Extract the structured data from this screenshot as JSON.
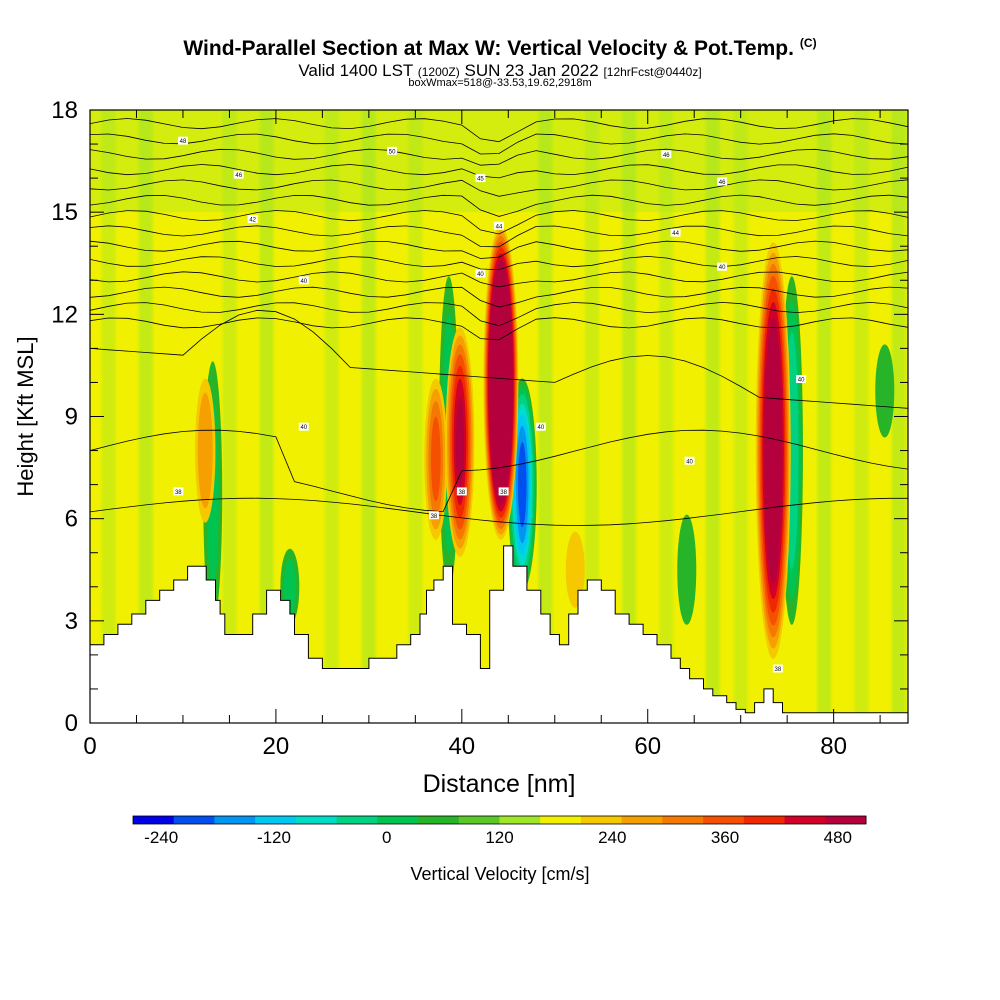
{
  "titles": {
    "line1": "Wind-Parallel Section at Max W: Vertical Velocity & Pot.Temp.",
    "copyright_mark": "(C)",
    "line2_main": "Valid 1400 LST",
    "line2_zulu": "(1200Z)",
    "line2_date": "SUN 23 Jan 2022",
    "line2_fcst": "[12hrFcst@0440z]",
    "line3": "boxWmax=518@-33.53,19.62,2918m"
  },
  "chart_data": {
    "type": "heatmap",
    "title": "Wind-Parallel Section at Max W: Vertical Velocity & Pot.Temp.",
    "xlabel": "Distance [nm]",
    "ylabel": "Height [Kft MSL]",
    "xlim": [
      0,
      88
    ],
    "ylim": [
      0,
      18
    ],
    "xticks": [
      0,
      20,
      40,
      60,
      80
    ],
    "yticks": [
      0,
      3,
      6,
      9,
      12,
      15,
      18
    ],
    "background_value": 40,
    "colorbar": {
      "label": "Vertical Velocity [cm/s]",
      "tick_labels": [
        "-240",
        "-120",
        "0",
        "120",
        "240",
        "360",
        "480"
      ],
      "tick_values": [
        -240,
        -120,
        0,
        120,
        240,
        360,
        480
      ],
      "range": [
        -270,
        510
      ],
      "step": 30,
      "colors": [
        "#0000e6",
        "#0050f0",
        "#0096f0",
        "#00c8f0",
        "#00dcc8",
        "#00d282",
        "#00c350",
        "#28b428",
        "#5ac828",
        "#a0e628",
        "#f0f000",
        "#f5c800",
        "#f5a000",
        "#f57800",
        "#f55000",
        "#f02800",
        "#d20028",
        "#b4003c"
      ]
    },
    "features": [
      {
        "name": "updraft",
        "x": 44.2,
        "y_bottom": 5.5,
        "y_top": 14.5,
        "peak_cm_s": 480
      },
      {
        "name": "updraft",
        "x": 73.5,
        "y_bottom": 2,
        "y_top": 14,
        "peak_cm_s": 330
      },
      {
        "name": "updraft",
        "x": 39.8,
        "y_bottom": 5,
        "y_top": 11.5,
        "peak_cm_s": 240
      },
      {
        "name": "updraft",
        "x": 37.2,
        "y_bottom": 5.5,
        "y_top": 10,
        "peak_cm_s": 150
      },
      {
        "name": "updraft",
        "x": 12.4,
        "y_bottom": 6,
        "y_top": 10,
        "peak_cm_s": 110
      },
      {
        "name": "updraft",
        "x": 52.2,
        "y_bottom": 3.5,
        "y_top": 5.5,
        "peak_cm_s": 60
      },
      {
        "name": "downdraft",
        "x": 46.5,
        "y_bottom": 4,
        "y_top": 10,
        "peak_cm_s": -240
      },
      {
        "name": "downdraft",
        "x": 38.6,
        "y_bottom": 4,
        "y_top": 13,
        "peak_cm_s": -100
      },
      {
        "name": "downdraft",
        "x": 75.5,
        "y_bottom": 3,
        "y_top": 13,
        "peak_cm_s": -140
      },
      {
        "name": "downdraft",
        "x": 13.2,
        "y_bottom": 3,
        "y_top": 10.5,
        "peak_cm_s": -90
      },
      {
        "name": "downdraft",
        "x": 21.5,
        "y_bottom": 3,
        "y_top": 5,
        "peak_cm_s": -90
      },
      {
        "name": "downdraft",
        "x": 64.2,
        "y_bottom": 3,
        "y_top": 6,
        "peak_cm_s": -80
      },
      {
        "name": "downdraft",
        "x": 85.5,
        "y_bottom": 8.5,
        "y_top": 11,
        "peak_cm_s": -60
      }
    ],
    "terrain": {
      "x": [
        0,
        1.5,
        3,
        4.5,
        6,
        7.5,
        9,
        10.5,
        11.5,
        12.5,
        13.5,
        14,
        14.5,
        16,
        17.5,
        19,
        20.5,
        21.5,
        22,
        23.5,
        25,
        27,
        28.5,
        30,
        31.5,
        33,
        34.5,
        35.5,
        36.2,
        37,
        38,
        39,
        40.5,
        42,
        43,
        44.5,
        45.5,
        47,
        48.5,
        49.5,
        50.5,
        51.5,
        52.5,
        53.5,
        55,
        56.5,
        58,
        59.5,
        61,
        62.5,
        63.5,
        64.5,
        66,
        67,
        68.5,
        69.5,
        70.5,
        71.5,
        72.5,
        73.5,
        74.5,
        76,
        78,
        80,
        82,
        84,
        86,
        88
      ],
      "height_kft": [
        2.3,
        2.6,
        2.9,
        3.2,
        3.6,
        3.9,
        4.2,
        4.6,
        4.6,
        4.2,
        3.6,
        3.2,
        2.6,
        2.6,
        3.2,
        3.9,
        3.6,
        3.2,
        2.6,
        1.9,
        1.6,
        1.6,
        1.6,
        1.9,
        1.9,
        2.3,
        2.6,
        3.2,
        3.9,
        4.2,
        4.6,
        2.9,
        2.6,
        1.6,
        3.9,
        5.2,
        4.6,
        3.9,
        3.2,
        2.6,
        2.3,
        3.2,
        3.9,
        4.2,
        3.9,
        3.2,
        2.9,
        2.6,
        2.3,
        1.9,
        1.6,
        1.3,
        1.0,
        0.8,
        0.6,
        0.4,
        0.3,
        0.6,
        1.0,
        0.6,
        0.3,
        0.3,
        0.3,
        0.3,
        0.3,
        0.3,
        0.3,
        0.3
      ]
    },
    "isentropes": {
      "labels": [
        {
          "text": "48",
          "x": 10,
          "y": 17.1
        },
        {
          "text": "50",
          "x": 32.5,
          "y": 16.8
        },
        {
          "text": "46",
          "x": 62,
          "y": 16.7
        },
        {
          "text": "46",
          "x": 16,
          "y": 16.1
        },
        {
          "text": "45",
          "x": 42,
          "y": 16.0
        },
        {
          "text": "46",
          "x": 68,
          "y": 15.9
        },
        {
          "text": "42",
          "x": 17.5,
          "y": 14.8
        },
        {
          "text": "44",
          "x": 44,
          "y": 14.6
        },
        {
          "text": "44",
          "x": 63,
          "y": 14.4
        },
        {
          "text": "40",
          "x": 23,
          "y": 13.0
        },
        {
          "text": "40",
          "x": 42,
          "y": 13.2
        },
        {
          "text": "40",
          "x": 68,
          "y": 13.4
        },
        {
          "text": "40",
          "x": 23,
          "y": 8.7
        },
        {
          "text": "40",
          "x": 48.5,
          "y": 8.7
        },
        {
          "text": "40",
          "x": 64.5,
          "y": 7.7
        },
        {
          "text": "40",
          "x": 76.5,
          "y": 10.1
        },
        {
          "text": "38",
          "x": 9.5,
          "y": 6.8
        },
        {
          "text": "38",
          "x": 37,
          "y": 6.1
        },
        {
          "text": "38",
          "x": 40,
          "y": 6.8
        },
        {
          "text": "38",
          "x": 44.5,
          "y": 6.8
        },
        {
          "text": "38",
          "x": 74,
          "y": 1.6
        }
      ]
    }
  }
}
